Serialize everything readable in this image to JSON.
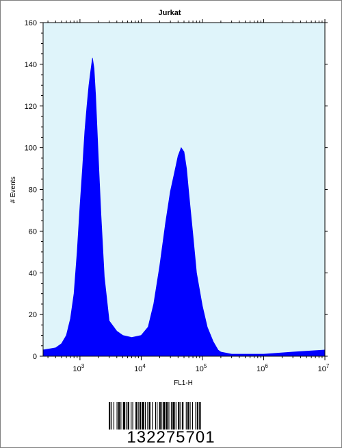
{
  "chart_data": {
    "type": "area",
    "title": "Jurkat",
    "xlabel": "FL1-H",
    "ylabel": "# Events",
    "x_scale": "log",
    "xlim": [
      250,
      10000000
    ],
    "ylim": [
      0,
      160
    ],
    "y_ticks": [
      0,
      20,
      40,
      60,
      80,
      100,
      120,
      140,
      160
    ],
    "x_ticks": [
      {
        "value": 1000,
        "base": "10",
        "exp": "3"
      },
      {
        "value": 10000,
        "base": "10",
        "exp": "4"
      },
      {
        "value": 100000,
        "base": "10",
        "exp": "5"
      },
      {
        "value": 1000000,
        "base": "10",
        "exp": "6"
      },
      {
        "value": 10000000,
        "base": "10",
        "exp": "7"
      }
    ],
    "grid": false,
    "colors": {
      "fill": "#0000ff",
      "plot_background": "#dff4fa",
      "axis": "#000000"
    },
    "series": [
      {
        "x": [
          250,
          400,
          500,
          600,
          700,
          800,
          900,
          1000,
          1100,
          1200,
          1300,
          1400,
          1500,
          1600,
          1700,
          1800,
          2000,
          2200,
          2500,
          3000,
          4000,
          5000,
          7000,
          10000,
          13000,
          16000,
          20000,
          25000,
          30000,
          35000,
          40000,
          45000,
          50000,
          55000,
          60000,
          70000,
          80000,
          100000,
          120000,
          150000,
          180000,
          200000,
          300000,
          1000000,
          3000000,
          10000000
        ],
        "values": [
          3,
          4,
          6,
          10,
          18,
          30,
          50,
          72,
          90,
          108,
          120,
          130,
          137,
          143,
          138,
          125,
          95,
          68,
          38,
          17,
          12,
          10,
          9,
          10,
          14,
          25,
          43,
          64,
          79,
          88,
          96,
          100,
          98,
          90,
          78,
          58,
          40,
          24,
          14,
          7,
          3,
          2,
          1,
          1,
          2,
          3
        ]
      }
    ]
  },
  "barcode": {
    "number": "132275701"
  }
}
